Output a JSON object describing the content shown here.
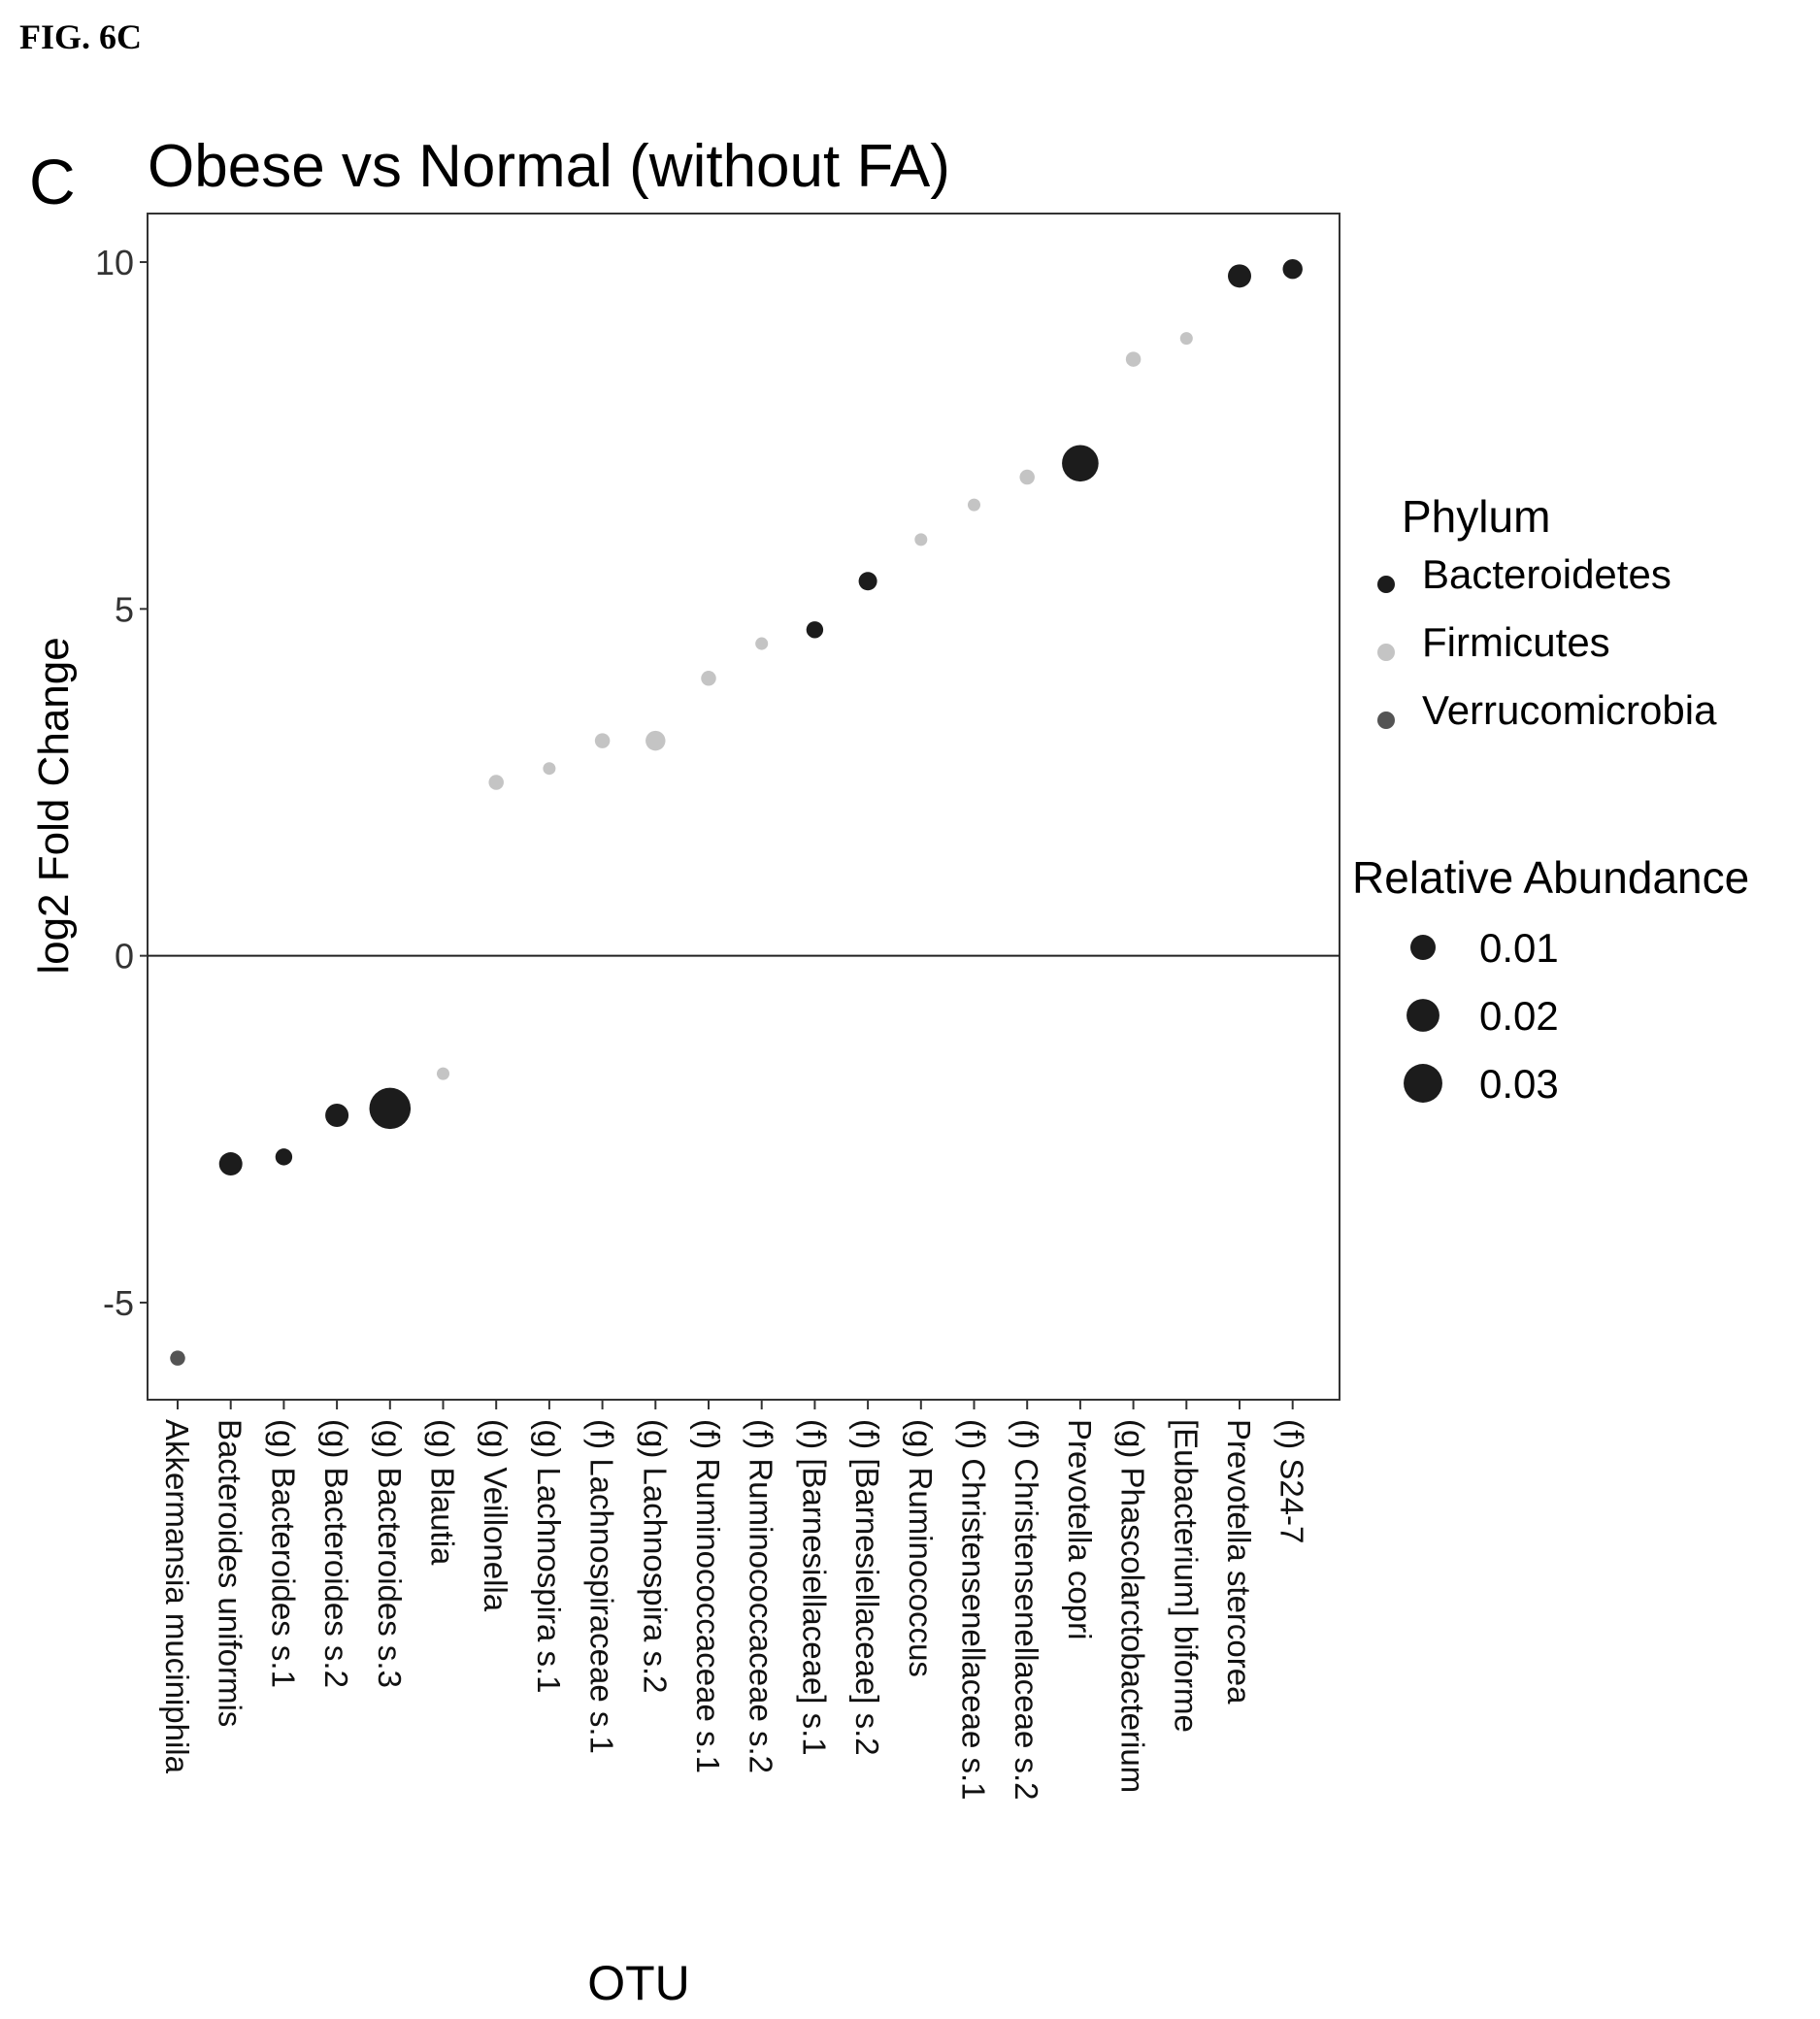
{
  "figure_label": "FIG. 6C",
  "panel_letter": "C",
  "chart_data": {
    "type": "scatter",
    "title": "Obese vs Normal (without FA)",
    "xlabel": "OTU",
    "ylabel": "log2 Fold Change",
    "ylim": [
      -6.4,
      10.7
    ],
    "yticks": [
      10,
      5,
      0,
      -5
    ],
    "ytick_labels": [
      "10",
      "5",
      "0",
      "-5"
    ],
    "zero_line": true,
    "grid": false,
    "legend_position": "right",
    "categories": [
      "Akkermansia muciniphila",
      "Bacteroides uniformis",
      "(g) Bacteroides s.1",
      "(g) Bacteroides s.2",
      "(g) Bacteroides s.3",
      "(g) Blautia",
      "(g) Veillonella",
      "(g) Lachnospira s.1",
      "(f) Lachnospiraceae s.1",
      "(g) Lachnospira s.2",
      "(f) Ruminococcaceae s.1",
      "(f) Ruminococcaceae s.2",
      "(f) [Barnesiellaceae] s.1",
      "(f) [Barnesiellaceae] s.2",
      "(g) Ruminococcus",
      "(f) Christensenellaceae s.1",
      "(f) Christensenellaceae s.2",
      "Prevotella copri",
      "(g) Phascolarctobacterium",
      "[Eubacterium] biforme",
      "Prevotella stercorea",
      "(f) S24-7"
    ],
    "points": [
      {
        "otu": "Akkermansia muciniphila",
        "y": -5.8,
        "phylum": "Verrucomicrobia",
        "abundance": 0.002
      },
      {
        "otu": "Bacteroides uniformis",
        "y": -3.0,
        "phylum": "Bacteroidetes",
        "abundance": 0.008
      },
      {
        "otu": "(g) Bacteroides s.1",
        "y": -2.9,
        "phylum": "Bacteroidetes",
        "abundance": 0.003
      },
      {
        "otu": "(g) Bacteroides s.2",
        "y": -2.3,
        "phylum": "Bacteroidetes",
        "abundance": 0.008
      },
      {
        "otu": "(g) Bacteroides s.3",
        "y": -2.2,
        "phylum": "Bacteroidetes",
        "abundance": 0.035
      },
      {
        "otu": "(g) Blautia",
        "y": -1.7,
        "phylum": "Firmicutes",
        "abundance": 0.001
      },
      {
        "otu": "(g) Veillonella",
        "y": 2.5,
        "phylum": "Firmicutes",
        "abundance": 0.002
      },
      {
        "otu": "(g) Lachnospira s.1",
        "y": 2.7,
        "phylum": "Firmicutes",
        "abundance": 0.001
      },
      {
        "otu": "(f) Lachnospiraceae s.1",
        "y": 3.1,
        "phylum": "Firmicutes",
        "abundance": 0.002
      },
      {
        "otu": "(g) Lachnospira s.2",
        "y": 3.1,
        "phylum": "Firmicutes",
        "abundance": 0.005
      },
      {
        "otu": "(f) Ruminococcaceae s.1",
        "y": 4.0,
        "phylum": "Firmicutes",
        "abundance": 0.002
      },
      {
        "otu": "(f) Ruminococcaceae s.2",
        "y": 4.5,
        "phylum": "Firmicutes",
        "abundance": 0.001
      },
      {
        "otu": "(f) [Barnesiellaceae] s.1",
        "y": 4.7,
        "phylum": "Bacteroidetes",
        "abundance": 0.003
      },
      {
        "otu": "(f) [Barnesiellaceae] s.2",
        "y": 5.4,
        "phylum": "Bacteroidetes",
        "abundance": 0.004
      },
      {
        "otu": "(g) Ruminococcus",
        "y": 6.0,
        "phylum": "Firmicutes",
        "abundance": 0.001
      },
      {
        "otu": "(f) Christensenellaceae s.1",
        "y": 6.5,
        "phylum": "Firmicutes",
        "abundance": 0.001
      },
      {
        "otu": "(f) Christensenellaceae s.2",
        "y": 6.9,
        "phylum": "Firmicutes",
        "abundance": 0.002
      },
      {
        "otu": "Prevotella copri",
        "y": 7.1,
        "phylum": "Bacteroidetes",
        "abundance": 0.026
      },
      {
        "otu": "(g) Phascolarctobacterium",
        "y": 8.6,
        "phylum": "Firmicutes",
        "abundance": 0.002
      },
      {
        "otu": "[Eubacterium] biforme",
        "y": 8.9,
        "phylum": "Firmicutes",
        "abundance": 0.001
      },
      {
        "otu": "Prevotella stercorea",
        "y": 9.8,
        "phylum": "Bacteroidetes",
        "abundance": 0.008
      },
      {
        "otu": "(f) S24-7",
        "y": 9.9,
        "phylum": "Bacteroidetes",
        "abundance": 0.005
      }
    ],
    "legend_phylum": {
      "title": "Phylum",
      "entries": [
        {
          "label": "Bacteroidetes",
          "color": "#1c1c1c"
        },
        {
          "label": "Firmicutes",
          "color": "#c4c4c4"
        },
        {
          "label": "Verrucomicrobia",
          "color": "#545454"
        }
      ]
    },
    "legend_size": {
      "title": "Relative Abundance",
      "entries": [
        {
          "label": "0.01",
          "value": 0.01
        },
        {
          "label": "0.02",
          "value": 0.02
        },
        {
          "label": "0.03",
          "value": 0.03
        }
      ]
    }
  }
}
